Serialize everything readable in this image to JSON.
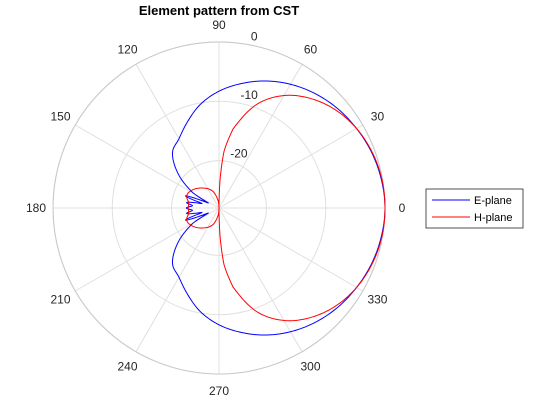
{
  "chart_data": {
    "type": "line",
    "subtype": "polar",
    "title": "Element pattern from CST",
    "theta_ticks_deg": [
      0,
      30,
      60,
      90,
      120,
      150,
      180,
      210,
      240,
      270,
      300,
      330
    ],
    "theta_tick_labels": [
      "0",
      "30",
      "60",
      "90",
      "120",
      "150",
      "180",
      "210",
      "240",
      "270",
      "300",
      "330"
    ],
    "r_ticks": [
      -20,
      -10,
      0
    ],
    "r_tick_labels": [
      "-20",
      "-10",
      "0"
    ],
    "rlim": [
      -28,
      0
    ],
    "grid": true,
    "legend_position": "right",
    "series": [
      {
        "name": "E-plane",
        "color": "#0000ff",
        "theta_deg": [
          0,
          10,
          20,
          30,
          40,
          50,
          60,
          70,
          80,
          90,
          100,
          110,
          120,
          130,
          140,
          150,
          155,
          160,
          165,
          170,
          175,
          180
        ],
        "r_db": [
          0,
          -0.2,
          -0.6,
          -1.2,
          -1.9,
          -2.8,
          -3.9,
          -5.2,
          -6.7,
          -8.3,
          -10.2,
          -12.5,
          -14.5,
          -15.8,
          -19,
          -23,
          -26,
          -22,
          -25,
          -22.5,
          -23.5,
          -22.5
        ]
      },
      {
        "name": "H-plane",
        "color": "#ff0000",
        "theta_deg": [
          0,
          10,
          20,
          30,
          40,
          50,
          60,
          70,
          80,
          85,
          88,
          90,
          95,
          110,
          130,
          150,
          160,
          170,
          180
        ],
        "r_db": [
          0,
          -0.1,
          -0.5,
          -1.2,
          -2.3,
          -3.9,
          -6.1,
          -9.4,
          -14.5,
          -18.5,
          -23.5,
          -28,
          -27,
          -25,
          -23.6,
          -22.4,
          -22.2,
          -22.8,
          -22.8
        ]
      }
    ]
  }
}
